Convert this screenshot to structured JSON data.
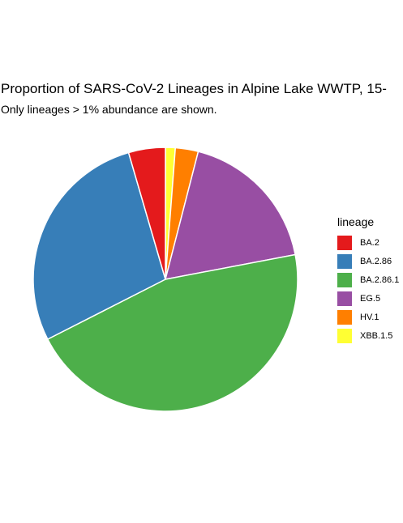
{
  "chart_data": {
    "type": "pie",
    "title": "Proportion of SARS-CoV-2 Lineages in Alpine Lake WWTP, 15-",
    "subtitle": "Only lineages > 1% abundance are shown.",
    "legend_title": "lineage",
    "legend_position": "right",
    "slices": [
      {
        "label": "XBB.1.5",
        "value": 1.2,
        "color": "#FFFF33"
      },
      {
        "label": "HV.1",
        "value": 2.8,
        "color": "#FF7F00"
      },
      {
        "label": "EG.5",
        "value": 18.0,
        "color": "#984EA3"
      },
      {
        "label": "BA.2.86.1",
        "value": 45.5,
        "color": "#4DAF4A"
      },
      {
        "label": "BA.2.86",
        "value": 28.0,
        "color": "#377EB8"
      },
      {
        "label": "BA.2",
        "value": 4.5,
        "color": "#E41A1C"
      }
    ],
    "legend_order": [
      "BA.2",
      "BA.2.86",
      "BA.2.86.1",
      "EG.5",
      "HV.1",
      "XBB.1.5"
    ]
  }
}
